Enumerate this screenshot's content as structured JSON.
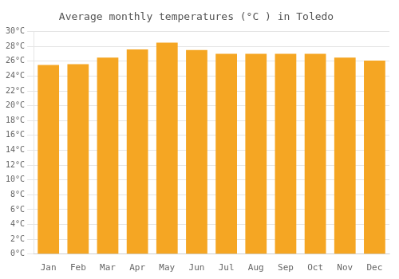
{
  "chart_data": {
    "type": "bar",
    "title": "Average monthly temperatures (°C ) in Toledo",
    "categories": [
      "Jan",
      "Feb",
      "Mar",
      "Apr",
      "May",
      "Jun",
      "Jul",
      "Aug",
      "Sep",
      "Oct",
      "Nov",
      "Dec"
    ],
    "values": [
      25.5,
      25.6,
      26.5,
      27.6,
      28.5,
      27.5,
      27.0,
      27.0,
      27.0,
      27.0,
      26.5,
      26.1
    ],
    "color": "#F5A623",
    "ylim": [
      0,
      30
    ],
    "yticks": [
      {
        "value": 0,
        "label": "0°C"
      },
      {
        "value": 2,
        "label": "2°C"
      },
      {
        "value": 4,
        "label": "4°C"
      },
      {
        "value": 6,
        "label": "6°C"
      },
      {
        "value": 8,
        "label": "8°C"
      },
      {
        "value": 10,
        "label": "10°C"
      },
      {
        "value": 12,
        "label": "12°C"
      },
      {
        "value": 14,
        "label": "14°C"
      },
      {
        "value": 16,
        "label": "16°C"
      },
      {
        "value": 18,
        "label": "18°C"
      },
      {
        "value": 20,
        "label": "20°C"
      },
      {
        "value": 22,
        "label": "22°C"
      },
      {
        "value": 24,
        "label": "24°C"
      },
      {
        "value": 26,
        "label": "26°C"
      },
      {
        "value": 28,
        "label": "28°C"
      },
      {
        "value": 30,
        "label": "30°C"
      }
    ],
    "grid": true
  }
}
